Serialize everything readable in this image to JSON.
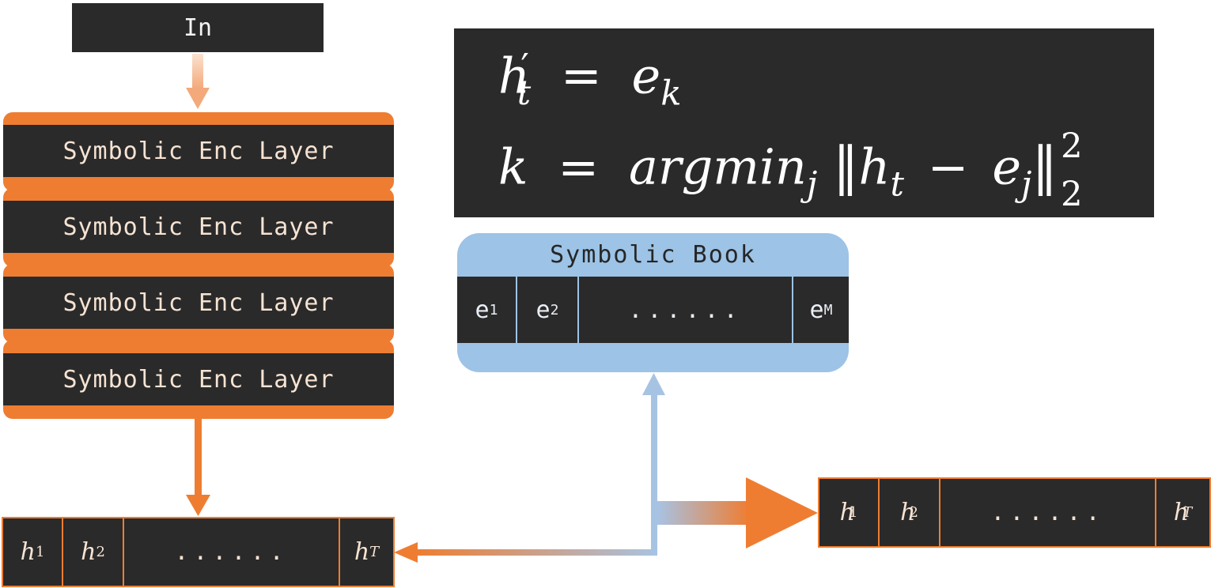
{
  "input": {
    "label": "In"
  },
  "encoder": {
    "layers": [
      "Symbolic Enc Layer",
      "Symbolic Enc Layer",
      "Symbolic Enc Layer",
      "Symbolic Enc Layer"
    ]
  },
  "hidden_sequence": {
    "cells": [
      {
        "var": "h",
        "sub": "1"
      },
      {
        "var": "h",
        "sub": "2"
      },
      {
        "dots": "......"
      },
      {
        "var": "h",
        "sub": "T"
      }
    ]
  },
  "quantized_sequence": {
    "cells": [
      {
        "var": "h",
        "prime": "′",
        "sub": "1"
      },
      {
        "var": "h",
        "prime": "′",
        "sub": "2"
      },
      {
        "dots": "......"
      },
      {
        "var": "h",
        "prime": "′",
        "sub": "T"
      }
    ]
  },
  "formula": {
    "line1": {
      "lhs_var": "h",
      "lhs_prime": "′",
      "lhs_sub": "t",
      "eq": "=",
      "rhs_var": "e",
      "rhs_sub": "k"
    },
    "line2": {
      "k": "k",
      "eq": "=",
      "op": "argmin",
      "op_sub": "j",
      "h": "h",
      "h_sub": "t",
      "minus": "−",
      "e": "e",
      "e_sub": "j",
      "sup": "2",
      "norm_sub": "2"
    }
  },
  "codebook": {
    "title": "Symbolic Book",
    "entries": [
      {
        "label": "e",
        "sub": "1"
      },
      {
        "label": "e",
        "sub": "2"
      },
      {
        "label": "......"
      },
      {
        "label": "e",
        "sub": "M"
      }
    ]
  },
  "colors": {
    "encoder_orange": "#ee7d32",
    "codebook_blue": "#9dc3e6",
    "dark_fill": "#2a2a2a"
  }
}
